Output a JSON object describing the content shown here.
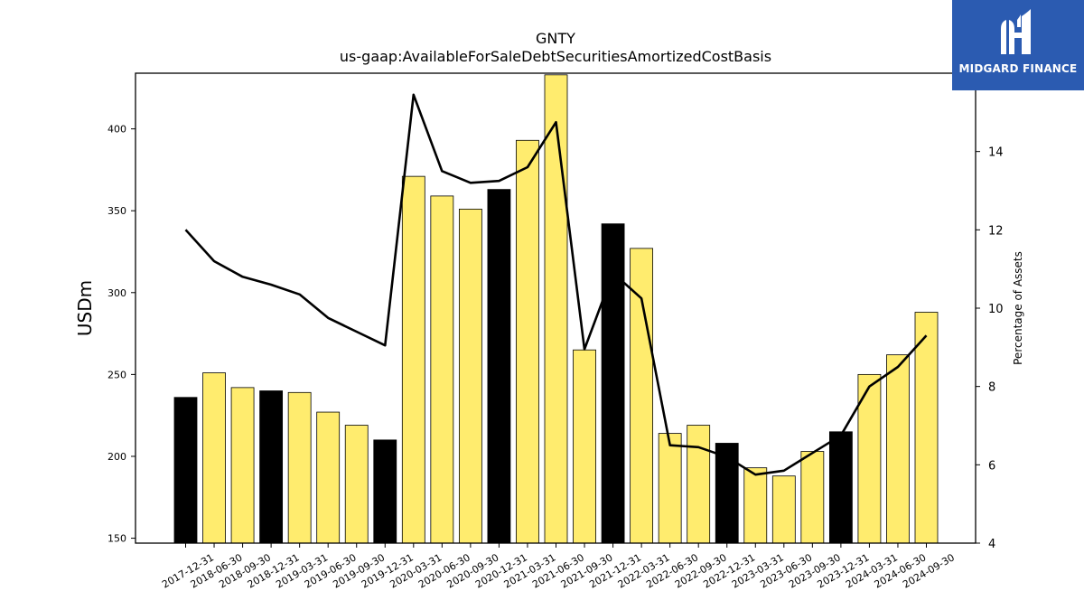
{
  "logo": {
    "text": "MIDGARD FINANCE",
    "icon": "midgard-logo-icon",
    "background": "#2b5bb1"
  },
  "chart_data": {
    "type": "bar",
    "title": "GNTY",
    "subtitle": "us-gaap:AvailableForSaleDebtSecuritiesAmortizedCostBasis",
    "ylabel": "USDm",
    "y2label": "Percentage of Assets",
    "ylim": [
      147,
      434
    ],
    "y2lim": [
      4,
      16
    ],
    "yticks": [
      150,
      200,
      250,
      300,
      350,
      400
    ],
    "y2ticks": [
      4,
      6,
      8,
      10,
      12,
      14
    ],
    "categories": [
      "2017-12-31",
      "2018-06-30",
      "2018-09-30",
      "2018-12-31",
      "2019-03-31",
      "2019-06-30",
      "2019-09-30",
      "2019-12-31",
      "2020-03-31",
      "2020-06-30",
      "2020-09-30",
      "2020-12-31",
      "2021-03-31",
      "2021-06-30",
      "2021-09-30",
      "2021-12-31",
      "2022-03-31",
      "2022-06-30",
      "2022-09-30",
      "2022-12-31",
      "2023-03-31",
      "2023-06-30",
      "2023-09-30",
      "2023-12-31",
      "2024-03-31",
      "2024-06-30",
      "2024-09-30"
    ],
    "series": [
      {
        "type": "bar",
        "axis": "left",
        "values": [
          236,
          251,
          242,
          240,
          239,
          227,
          219,
          210,
          371,
          359,
          351,
          363,
          393,
          433,
          265,
          342,
          327,
          214,
          219,
          208,
          193,
          188,
          203,
          215,
          250,
          262,
          288
        ],
        "highlight": [
          true,
          false,
          false,
          true,
          false,
          false,
          false,
          true,
          false,
          false,
          false,
          true,
          false,
          false,
          false,
          true,
          false,
          false,
          false,
          true,
          false,
          false,
          false,
          true,
          false,
          false,
          false
        ]
      },
      {
        "type": "line",
        "axis": "right",
        "values": [
          12.0,
          11.2,
          10.8,
          10.6,
          10.35,
          9.75,
          9.4,
          9.05,
          15.45,
          13.5,
          13.2,
          13.25,
          13.6,
          14.75,
          8.95,
          10.9,
          10.25,
          6.5,
          6.45,
          6.2,
          5.75,
          5.85,
          6.3,
          6.75,
          8.0,
          8.5,
          9.3
        ]
      }
    ],
    "colors": {
      "bar": "#ffec6e",
      "bar_highlight": "#000000",
      "bar_edge": "#000000",
      "line": "#000000"
    },
    "grid": false,
    "legend": "none"
  }
}
